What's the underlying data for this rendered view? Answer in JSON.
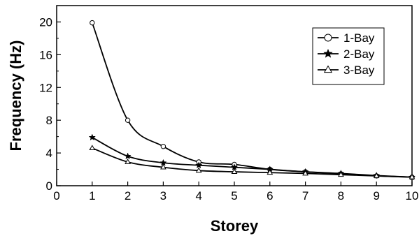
{
  "chart_data": {
    "type": "line",
    "title": "",
    "xlabel": "Storey",
    "ylabel": "Frequency (Hz)",
    "xlim": [
      0,
      10
    ],
    "ylim": [
      0,
      22
    ],
    "xticks": [
      "0",
      "1",
      "2",
      "3",
      "4",
      "5",
      "6",
      "7",
      "8",
      "9",
      "10"
    ],
    "yticks": [
      "0",
      "4",
      "8",
      "12",
      "16",
      "20"
    ],
    "grid": false,
    "legend_position": "top-right",
    "series": [
      {
        "name": "1-Bay",
        "marker": "circle-open",
        "color": "#000000",
        "x": [
          1,
          2,
          3,
          4,
          5,
          6,
          7,
          8,
          9,
          10
        ],
        "y": [
          19.9,
          8.0,
          4.8,
          2.9,
          2.6,
          2.0,
          1.7,
          1.45,
          1.2,
          1.05
        ]
      },
      {
        "name": "2-Bay",
        "marker": "star",
        "color": "#000000",
        "x": [
          1,
          2,
          3,
          4,
          5,
          6,
          7,
          8,
          9,
          10
        ],
        "y": [
          5.9,
          3.6,
          2.8,
          2.5,
          2.25,
          2.0,
          1.7,
          1.5,
          1.25,
          1.05
        ]
      },
      {
        "name": "3-Bay",
        "marker": "triangle-open",
        "color": "#000000",
        "x": [
          1,
          2,
          3,
          4,
          5,
          6,
          7,
          8,
          9,
          10
        ],
        "y": [
          4.6,
          2.9,
          2.25,
          1.85,
          1.7,
          1.6,
          1.5,
          1.35,
          1.2,
          1.05
        ]
      }
    ]
  }
}
